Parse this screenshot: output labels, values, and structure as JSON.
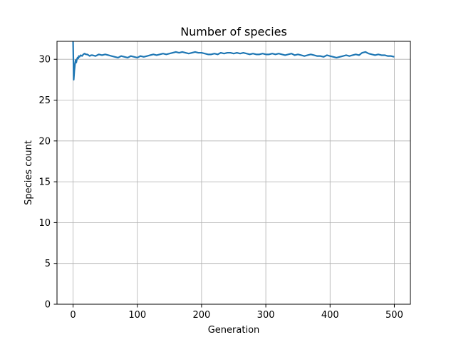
{
  "chart_data": {
    "type": "line",
    "title": "Number of species",
    "xlabel": "Generation",
    "ylabel": "Species count",
    "xlim": [
      -25,
      525
    ],
    "ylim": [
      0,
      32.2
    ],
    "xticks": [
      0,
      100,
      200,
      300,
      400,
      500
    ],
    "yticks": [
      0,
      5,
      10,
      15,
      20,
      25,
      30
    ],
    "xtick_labels": [
      "0",
      "100",
      "200",
      "300",
      "400",
      "500"
    ],
    "ytick_labels": [
      "0",
      "5",
      "10",
      "15",
      "20",
      "25",
      "30"
    ],
    "grid": true,
    "legend": "none",
    "colors": {
      "series": "#1f77b4",
      "grid": "#b0b0b0",
      "axes": "#000000"
    },
    "series": [
      {
        "x": [
          0,
          1,
          2,
          3,
          4,
          5,
          6,
          7,
          8,
          9,
          10,
          12,
          14,
          16,
          18,
          20,
          22,
          24,
          26,
          28,
          30,
          35,
          40,
          45,
          50,
          55,
          60,
          65,
          70,
          75,
          80,
          85,
          90,
          95,
          100,
          105,
          110,
          115,
          120,
          125,
          130,
          135,
          140,
          145,
          150,
          155,
          160,
          165,
          170,
          175,
          180,
          185,
          190,
          195,
          200,
          205,
          210,
          215,
          220,
          225,
          230,
          235,
          240,
          245,
          250,
          255,
          260,
          265,
          270,
          275,
          280,
          285,
          290,
          295,
          300,
          305,
          310,
          315,
          320,
          325,
          330,
          335,
          340,
          345,
          350,
          355,
          360,
          365,
          370,
          375,
          380,
          385,
          390,
          395,
          400,
          405,
          410,
          415,
          420,
          425,
          430,
          435,
          440,
          445,
          450,
          455,
          460,
          465,
          470,
          475,
          480,
          485,
          490,
          495,
          500
        ],
        "values": [
          32.2,
          27.5,
          28.6,
          29.4,
          29.9,
          29.6,
          30.0,
          30.2,
          30.1,
          30.4,
          30.3,
          30.5,
          30.4,
          30.6,
          30.7,
          30.6,
          30.6,
          30.5,
          30.4,
          30.5,
          30.5,
          30.4,
          30.6,
          30.5,
          30.6,
          30.5,
          30.4,
          30.3,
          30.2,
          30.4,
          30.3,
          30.2,
          30.4,
          30.3,
          30.2,
          30.4,
          30.3,
          30.4,
          30.5,
          30.6,
          30.5,
          30.6,
          30.7,
          30.6,
          30.7,
          30.8,
          30.9,
          30.8,
          30.9,
          30.8,
          30.7,
          30.8,
          30.9,
          30.8,
          30.8,
          30.7,
          30.6,
          30.6,
          30.7,
          30.6,
          30.8,
          30.7,
          30.8,
          30.8,
          30.7,
          30.8,
          30.7,
          30.8,
          30.7,
          30.6,
          30.7,
          30.6,
          30.6,
          30.7,
          30.6,
          30.6,
          30.7,
          30.6,
          30.7,
          30.6,
          30.5,
          30.6,
          30.7,
          30.5,
          30.6,
          30.5,
          30.4,
          30.5,
          30.6,
          30.5,
          30.4,
          30.4,
          30.3,
          30.5,
          30.4,
          30.3,
          30.2,
          30.3,
          30.4,
          30.5,
          30.4,
          30.5,
          30.6,
          30.5,
          30.8,
          30.9,
          30.7,
          30.6,
          30.5,
          30.6,
          30.5,
          30.5,
          30.4,
          30.4,
          30.3
        ]
      }
    ]
  }
}
